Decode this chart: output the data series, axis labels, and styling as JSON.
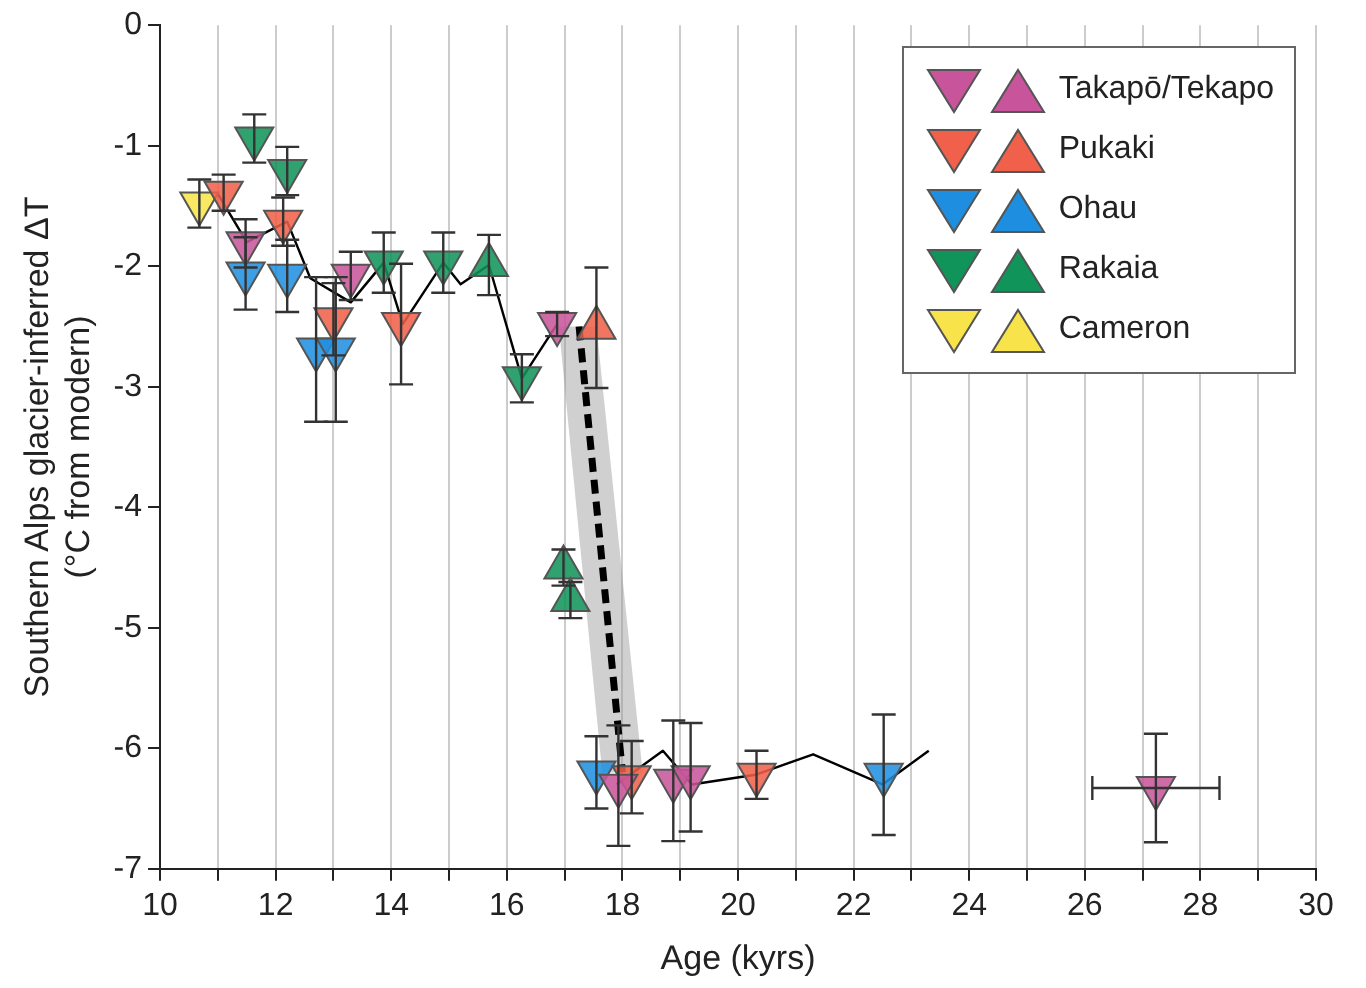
{
  "chart_data": {
    "type": "scatter",
    "xlabel": "Age (kyrs)",
    "ylabel": "Southern Alps glacier-inferred ΔT\n(°C from modern)",
    "xlim": [
      10,
      30
    ],
    "ylim": [
      -7,
      0
    ],
    "xticks": [
      10,
      {
        "value": 11,
        "label": null
      },
      12,
      {
        "value": 13,
        "label": null
      },
      14,
      {
        "value": 15,
        "label": null
      },
      16,
      {
        "value": 17,
        "label": null
      },
      18,
      {
        "value": 19,
        "label": null
      },
      20,
      {
        "value": 21,
        "label": null
      },
      22,
      {
        "value": 23,
        "label": null
      },
      24,
      {
        "value": 25,
        "label": null
      },
      26,
      {
        "value": 27,
        "label": null
      },
      28,
      {
        "value": 29,
        "label": null
      },
      30
    ],
    "yticks": [
      0,
      -1,
      -2,
      -3,
      -4,
      -5,
      -6,
      -7
    ],
    "grid": "x",
    "legend": "top right",
    "marker": "triangle",
    "series": [
      {
        "type": "line",
        "color": "#000000",
        "marker": "none",
        "line_style": "solid",
        "x": [
          11.0,
          11.5,
          12.2,
          12.6,
          13.3,
          13.87,
          14.2,
          14.9,
          15.2,
          15.69,
          16.26,
          16.87
        ],
        "values": [
          -1.4,
          -1.8,
          -1.63,
          -2.1,
          -2.3,
          -1.97,
          -2.48,
          -1.97,
          -2.15,
          -1.99,
          -2.93,
          -2.48
        ]
      },
      {
        "type": "line",
        "color": "#000000",
        "marker": "none",
        "line_style": "solid",
        "x": [
          17.9,
          18.7,
          19.2,
          20.3,
          21.3,
          22.5,
          23.3
        ],
        "values": [
          -6.3,
          -6.02,
          -6.3,
          -6.22,
          -6.05,
          -6.3,
          -6.02
        ]
      },
      {
        "type": "line",
        "color": "#000000",
        "marker": "none",
        "line_style": "dashed",
        "x": [
          16.9,
          17.25,
          17.55,
          17.65,
          18.0,
          18.35
        ],
        "values": [
          null,
          -2.5,
          -3.98,
          -4.47,
          -6.2,
          null
        ],
        "lower": [
          -2.5,
          -4.23,
          -5.71,
          -6.2,
          -6.2,
          -6.2
        ],
        "upper": [
          -2.5,
          -2.5,
          -2.5,
          -2.96,
          -4.58,
          -6.2
        ]
      },
      {
        "name": "Takapō/Tekapo",
        "color": "#c8559b",
        "x": [
          11.48,
          13.3,
          16.87,
          17.93,
          18.88,
          19.18,
          27.23
        ],
        "values": [
          -1.81,
          -2.08,
          -2.48,
          -6.31,
          -6.27,
          -6.24,
          -6.33
        ],
        "errors": [
          0.2,
          0.2,
          0.1,
          0.5,
          0.5,
          0.45,
          0.45
        ],
        "xerrors": [
          null,
          null,
          null,
          null,
          null,
          null,
          1.1
        ]
      },
      {
        "name": "Pukaki",
        "color": "#f0604a",
        "x": [
          11.1,
          12.13,
          13.0,
          14.17,
          18.16,
          20.32
        ],
        "values": [
          -1.39,
          -1.63,
          -2.44,
          -2.48,
          -6.24,
          -6.22
        ],
        "errors": [
          0.15,
          0.2,
          0.3,
          0.5,
          0.3,
          0.2
        ]
      },
      {
        "name": "Ohau",
        "color": "#1e8fe0",
        "x": [
          11.48,
          12.2,
          12.7,
          13.04,
          17.55,
          22.52
        ],
        "values": [
          -2.06,
          -2.08,
          -2.69,
          -2.69,
          -6.2,
          -6.22
        ],
        "errors": [
          0.3,
          0.3,
          0.6,
          0.6,
          0.3,
          0.5
        ]
      },
      {
        "name": "Rakaia",
        "color": "#10945a",
        "x": [
          11.63,
          12.2,
          13.87,
          14.9,
          16.26
        ],
        "values": [
          -0.94,
          -1.21,
          -1.97,
          -1.97,
          -2.93
        ],
        "errors": [
          0.2,
          0.2,
          0.25,
          0.25,
          0.2
        ]
      },
      {
        "name": "Cameron",
        "color": "#f8e44a",
        "x": [
          10.68
        ],
        "values": [
          -1.48
        ],
        "errors": [
          0.2
        ]
      },
      {
        "color": "#f0604a",
        "marker": "triangle",
        "x": [
          17.55
        ],
        "values": [
          -2.51
        ],
        "errors": [
          0.5
        ]
      },
      {
        "color": "#10945a",
        "marker": "triangle",
        "x": [
          15.69,
          16.98,
          17.1
        ],
        "values": [
          -1.99,
          -4.5,
          -4.77
        ],
        "errors": [
          0.25,
          0.15,
          0.15
        ]
      }
    ]
  }
}
